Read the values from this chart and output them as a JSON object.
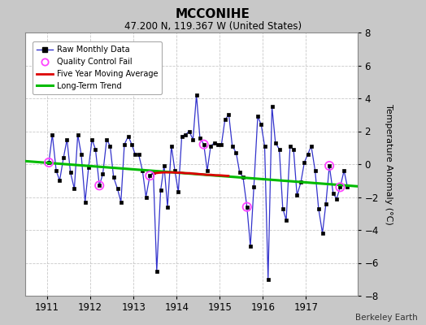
{
  "title": "MCCONIHE",
  "subtitle": "47.200 N, 119.367 W (United States)",
  "credit": "Berkeley Earth",
  "ylabel": "Temperature Anomaly (°C)",
  "ylim": [
    -8,
    8
  ],
  "xlim": [
    1910.5,
    1918.2
  ],
  "xticks": [
    1911,
    1912,
    1913,
    1914,
    1915,
    1916,
    1917
  ],
  "yticks": [
    -8,
    -6,
    -4,
    -2,
    0,
    2,
    4,
    6,
    8
  ],
  "raw_x": [
    1911.04,
    1911.12,
    1911.21,
    1911.29,
    1911.38,
    1911.46,
    1911.54,
    1911.63,
    1911.71,
    1911.79,
    1911.88,
    1911.96,
    1912.04,
    1912.12,
    1912.21,
    1912.29,
    1912.38,
    1912.46,
    1912.54,
    1912.63,
    1912.71,
    1912.79,
    1912.88,
    1912.96,
    1913.04,
    1913.12,
    1913.21,
    1913.29,
    1913.38,
    1913.46,
    1913.54,
    1913.63,
    1913.71,
    1913.79,
    1913.88,
    1913.96,
    1914.04,
    1914.12,
    1914.21,
    1914.29,
    1914.38,
    1914.46,
    1914.54,
    1914.63,
    1914.71,
    1914.79,
    1914.88,
    1914.96,
    1915.04,
    1915.12,
    1915.21,
    1915.29,
    1915.38,
    1915.46,
    1915.54,
    1915.63,
    1915.71,
    1915.79,
    1915.88,
    1915.96,
    1916.04,
    1916.12,
    1916.21,
    1916.29,
    1916.38,
    1916.46,
    1916.54,
    1916.63,
    1916.71,
    1916.79,
    1916.88,
    1916.96,
    1917.04,
    1917.12,
    1917.21,
    1917.29,
    1917.38,
    1917.46,
    1917.54,
    1917.63,
    1917.71,
    1917.79,
    1917.88,
    1917.96
  ],
  "raw_y": [
    0.1,
    1.8,
    -0.4,
    -1.0,
    0.4,
    1.5,
    -0.5,
    -1.5,
    1.8,
    0.6,
    -2.3,
    -0.2,
    1.5,
    0.9,
    -1.3,
    -0.6,
    1.5,
    1.1,
    -0.8,
    -1.5,
    -2.3,
    1.2,
    1.7,
    1.2,
    0.6,
    0.6,
    -0.4,
    -2.0,
    -0.7,
    -0.5,
    -6.5,
    -1.6,
    -0.1,
    -2.6,
    1.1,
    -0.4,
    -1.7,
    1.7,
    1.8,
    2.0,
    1.5,
    4.2,
    1.6,
    1.2,
    -0.4,
    1.1,
    1.3,
    1.2,
    1.2,
    2.7,
    3.0,
    1.1,
    0.7,
    -0.5,
    -0.8,
    -2.6,
    -5.0,
    -1.4,
    2.9,
    2.4,
    1.1,
    -7.0,
    3.5,
    1.3,
    0.9,
    -2.7,
    -3.4,
    1.1,
    0.9,
    -1.9,
    -1.1,
    0.1,
    0.6,
    1.1,
    -0.4,
    -2.7,
    -4.2,
    -2.4,
    -0.1,
    -1.8,
    -2.1,
    -1.4,
    -0.4,
    -1.4
  ],
  "qc_fail_x": [
    1911.04,
    1912.21,
    1913.38,
    1914.63,
    1915.63,
    1917.54,
    1917.79
  ],
  "qc_fail_y": [
    0.1,
    -1.3,
    -0.7,
    1.2,
    -2.6,
    -0.1,
    -1.4
  ],
  "moving_avg_x": [
    1913.5,
    1913.6,
    1913.7,
    1913.8,
    1913.9,
    1914.0,
    1914.1,
    1914.2,
    1914.3,
    1914.4,
    1914.5,
    1914.6,
    1914.7,
    1914.8,
    1914.9,
    1915.0,
    1915.1,
    1915.2
  ],
  "moving_avg_y": [
    -0.55,
    -0.52,
    -0.5,
    -0.5,
    -0.5,
    -0.52,
    -0.52,
    -0.55,
    -0.55,
    -0.58,
    -0.6,
    -0.62,
    -0.65,
    -0.65,
    -0.68,
    -0.68,
    -0.7,
    -0.72
  ],
  "trend_x": [
    1910.5,
    1918.2
  ],
  "trend_y": [
    0.18,
    -1.35
  ],
  "line_color": "#3333cc",
  "marker_color": "#000000",
  "qc_color": "#ff44ff",
  "moving_avg_color": "#dd0000",
  "trend_color": "#00bb00",
  "bg_color": "#c8c8c8",
  "plot_bg": "#ffffff",
  "grid_color": "#bbbbbb"
}
